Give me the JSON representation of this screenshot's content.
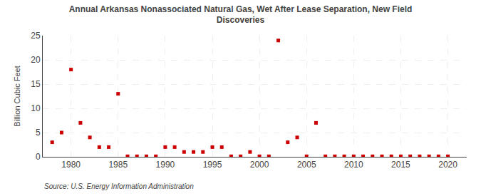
{
  "chart_data": {
    "type": "scatter",
    "title": "Annual Arkansas Nonassociated Natural Gas, Wet After Lease Separation, New Field\nDiscoveries",
    "ylabel": "Billion Cubic Feet",
    "annotations": [
      "Source: U.S. Energy Information Administration"
    ],
    "color": "#cc0000",
    "marker": "square",
    "grid": true,
    "xlim": [
      1977,
      2022
    ],
    "ylim": [
      0,
      25
    ],
    "xticks": [
      1980,
      1985,
      1990,
      1995,
      2000,
      2005,
      2010,
      2015,
      2020
    ],
    "yticks": [
      0,
      5,
      10,
      15,
      20,
      25
    ],
    "x": [
      1978,
      1979,
      1980,
      1981,
      1982,
      1983,
      1984,
      1985,
      1986,
      1987,
      1988,
      1989,
      1990,
      1991,
      1992,
      1993,
      1994,
      1995,
      1996,
      1997,
      1998,
      1999,
      2000,
      2001,
      2002,
      2003,
      2004,
      2005,
      2006,
      2007,
      2008,
      2009,
      2010,
      2011,
      2012,
      2013,
      2014,
      2015,
      2016,
      2017,
      2018,
      2019,
      2020
    ],
    "values": [
      3.0,
      5.0,
      18.0,
      7.0,
      4.0,
      2.0,
      2.0,
      13.0,
      0.1,
      0.1,
      0.1,
      0.1,
      2.0,
      2.0,
      1.0,
      1.0,
      1.0,
      2.0,
      2.0,
      0.1,
      0.1,
      1.0,
      0.1,
      0.1,
      24.0,
      3.0,
      4.0,
      0.1,
      7.0,
      0.1,
      0.1,
      0.1,
      0.1,
      0.1,
      0.1,
      0.1,
      0.1,
      0.1,
      0.1,
      0.1,
      0.1,
      0.1,
      0.1
    ]
  }
}
